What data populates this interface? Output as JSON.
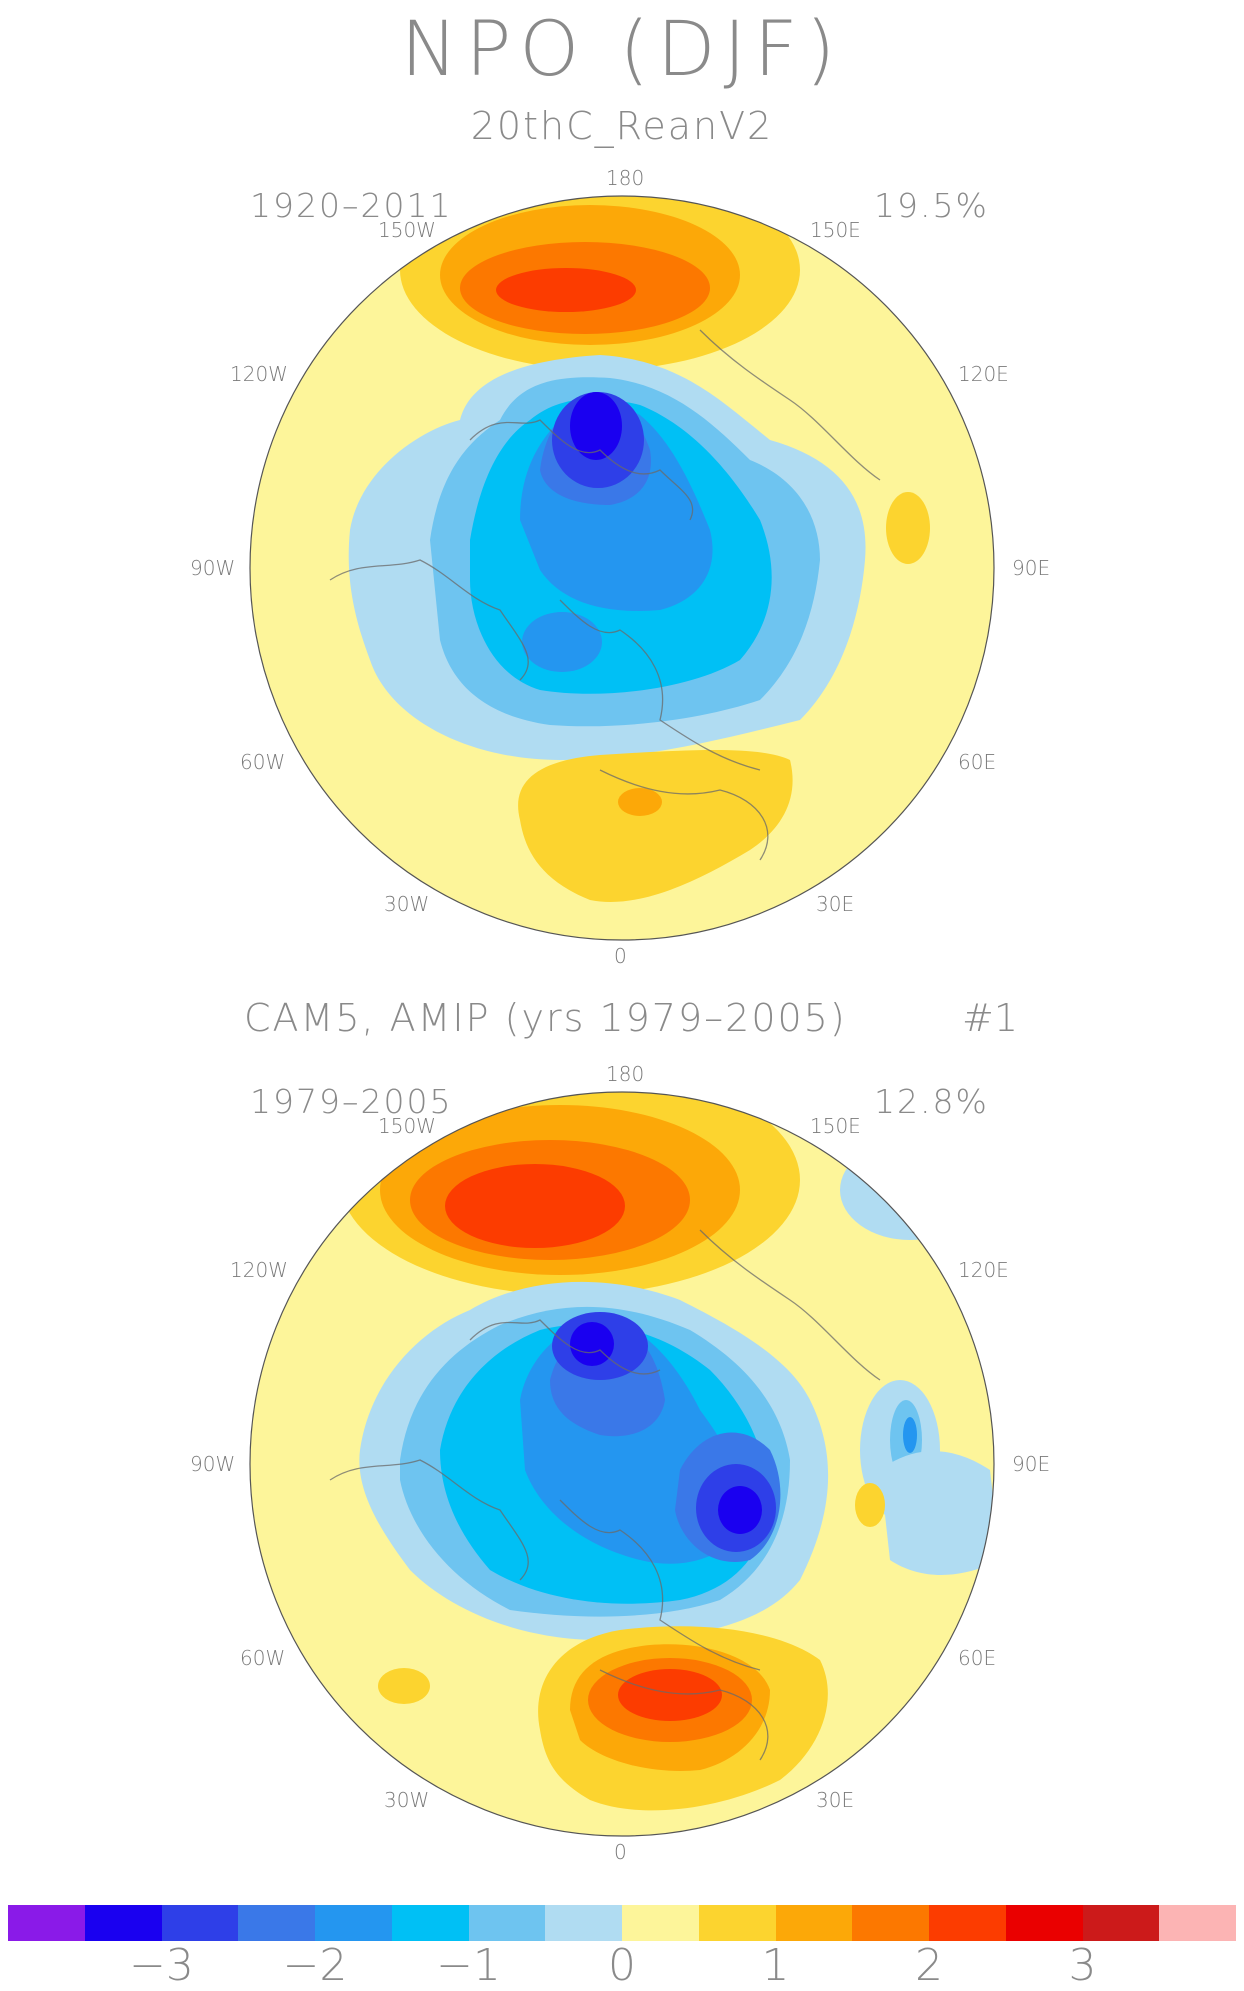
{
  "title": "NPO (DJF)",
  "panels": [
    {
      "subtitle": "20thC_ReanV2",
      "years": "1920–2011",
      "variance": "19.5%"
    },
    {
      "subtitle": "CAM5, AMIP (yrs 1979–2005)",
      "run_label": "#1",
      "years": "1979–2005",
      "variance": "12.8%"
    }
  ],
  "longitude_labels": {
    "top": "180",
    "bottom": "0",
    "w150": "150W",
    "e150": "150E",
    "w120": "120W",
    "e120": "120E",
    "w90": "90W",
    "e90": "90E",
    "w60": "60W",
    "e60": "60E",
    "w30": "30W",
    "e30": "30E"
  },
  "colorbar": {
    "colors": [
      "#8a1ae8",
      "#1a00f0",
      "#2e3fe8",
      "#3a78e8",
      "#2496f0",
      "#00c0f5",
      "#6ec4f0",
      "#b0dcf2",
      "#fdf59a",
      "#fcd42f",
      "#fca808",
      "#fc7800",
      "#fc3c00",
      "#ea0000",
      "#cc1a1a",
      "#fcb4b4"
    ],
    "labels": [
      "−3",
      "−2",
      "−1",
      "0",
      "1",
      "2",
      "3"
    ]
  }
}
